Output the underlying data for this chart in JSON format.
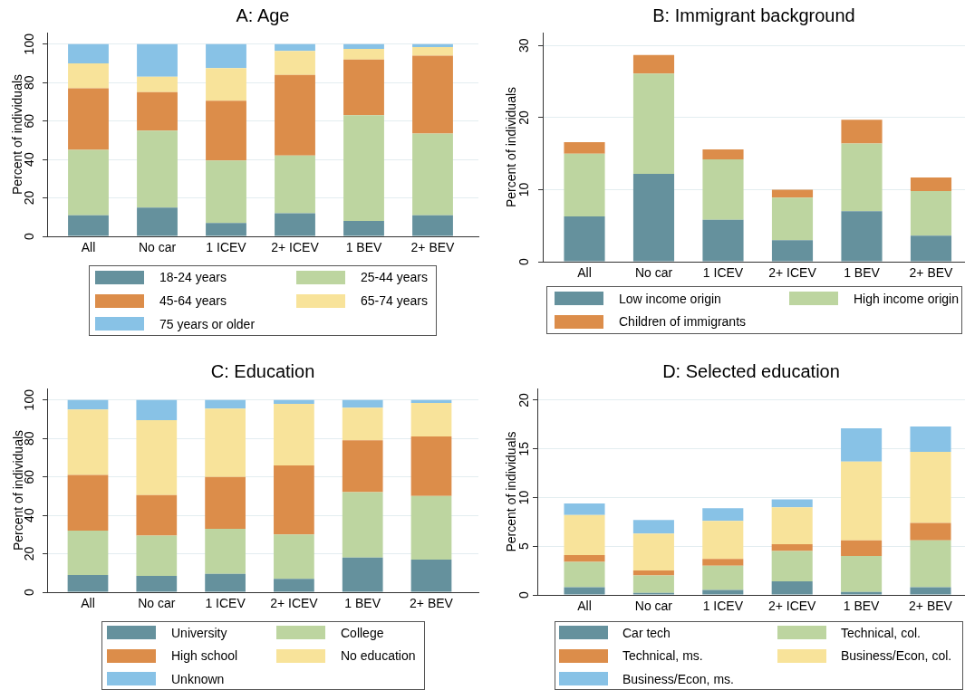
{
  "chart_data": [
    {
      "type": "bar",
      "title": "A: Age",
      "ylabel": "Percent of individuals",
      "categories": [
        "All",
        "No car",
        "1 ICEV",
        "2+ ICEV",
        "1 BEV",
        "2+ BEV"
      ],
      "series": [
        {
          "name": "18-24 years",
          "color": "#65919d",
          "values": [
            11,
            15,
            7,
            12,
            8,
            11
          ]
        },
        {
          "name": "25-44 years",
          "color": "#bdd5a0",
          "values": [
            34,
            40,
            32.5,
            30,
            55,
            42.5
          ]
        },
        {
          "name": "45-64 years",
          "color": "#dc8d4a",
          "values": [
            32,
            20,
            31,
            42,
            29,
            40.5
          ]
        },
        {
          "name": "65-74 years",
          "color": "#f8e39a",
          "values": [
            13,
            8,
            17,
            12.5,
            5.5,
            4.5
          ]
        },
        {
          "name": "75 years or older",
          "color": "#88c2e6",
          "values": [
            10,
            17,
            12.5,
            3.5,
            2.5,
            1.5
          ]
        }
      ],
      "stacked": true,
      "ylim": [
        0,
        106
      ],
      "yticks": [
        0,
        20,
        40,
        60,
        80,
        100
      ],
      "grid": "y",
      "legend": "bottom"
    },
    {
      "type": "bar",
      "title": "B: Immigrant background",
      "ylabel": "Percent of individuals",
      "categories": [
        "All",
        "No car",
        "1 ICEV",
        "2+ ICEV",
        "1 BEV",
        "2+ BEV"
      ],
      "series": [
        {
          "name": "Low income origin",
          "color": "#65919d",
          "values": [
            6.3,
            12.2,
            5.8,
            3.0,
            7.0,
            3.6
          ]
        },
        {
          "name": "High income origin",
          "color": "#bdd5a0",
          "values": [
            8.7,
            13.9,
            8.4,
            5.9,
            9.4,
            6.2
          ]
        },
        {
          "name": "Children of immigrants",
          "color": "#dc8d4a",
          "values": [
            1.6,
            2.6,
            1.4,
            1.1,
            3.3,
            1.9
          ]
        }
      ],
      "stacked": true,
      "ylim": [
        0,
        31.8
      ],
      "yticks": [
        0,
        10,
        20,
        30
      ],
      "grid": "y",
      "legend": "bottom"
    },
    {
      "type": "bar",
      "title": "C: Education",
      "ylabel": "Percent of individuals",
      "categories": [
        "All",
        "No car",
        "1 ICEV",
        "2+ ICEV",
        "1 BEV",
        "2+ BEV"
      ],
      "series": [
        {
          "name": "University",
          "color": "#65919d",
          "values": [
            9,
            8.5,
            9.5,
            7,
            18,
            17
          ]
        },
        {
          "name": "College",
          "color": "#bdd5a0",
          "values": [
            23,
            21,
            23.5,
            23,
            34,
            33
          ]
        },
        {
          "name": "High school",
          "color": "#dc8d4a",
          "values": [
            29,
            21,
            27,
            36,
            27,
            31
          ]
        },
        {
          "name": "No education",
          "color": "#f8e39a",
          "values": [
            34,
            39,
            35.5,
            32,
            17,
            17.5
          ]
        },
        {
          "name": "Unknown",
          "color": "#88c2e6",
          "values": [
            5,
            10.5,
            4.5,
            2,
            4,
            1.5
          ]
        }
      ],
      "stacked": true,
      "ylim": [
        0,
        106
      ],
      "yticks": [
        0,
        20,
        40,
        60,
        80,
        100
      ],
      "grid": "y",
      "legend": "bottom"
    },
    {
      "type": "bar",
      "title": "D: Selected education",
      "ylabel": "Percent of individuals",
      "categories": [
        "All",
        "No car",
        "1 ICEV",
        "2+ ICEV",
        "1 BEV",
        "2+ BEV"
      ],
      "series": [
        {
          "name": "Car tech",
          "color": "#65919d",
          "values": [
            0.8,
            0.2,
            0.5,
            1.4,
            0.3,
            0.8
          ]
        },
        {
          "name": "Technical, col.",
          "color": "#bdd5a0",
          "values": [
            2.6,
            1.8,
            2.5,
            3.1,
            3.7,
            4.8
          ]
        },
        {
          "name": "Technical, ms.",
          "color": "#dc8d4a",
          "values": [
            0.7,
            0.5,
            0.7,
            0.7,
            1.6,
            1.8
          ]
        },
        {
          "name": "Business/Econ, col.",
          "color": "#f8e39a",
          "values": [
            4.1,
            3.8,
            3.9,
            3.8,
            8.1,
            7.3
          ]
        },
        {
          "name": "Business/Econ, ms.",
          "color": "#88c2e6",
          "values": [
            1.2,
            1.4,
            1.3,
            0.8,
            3.4,
            2.6
          ]
        }
      ],
      "stacked": true,
      "ylim": [
        0,
        21.2
      ],
      "yticks": [
        0,
        5,
        10,
        15,
        20
      ],
      "grid": "y",
      "legend": "bottom"
    }
  ]
}
